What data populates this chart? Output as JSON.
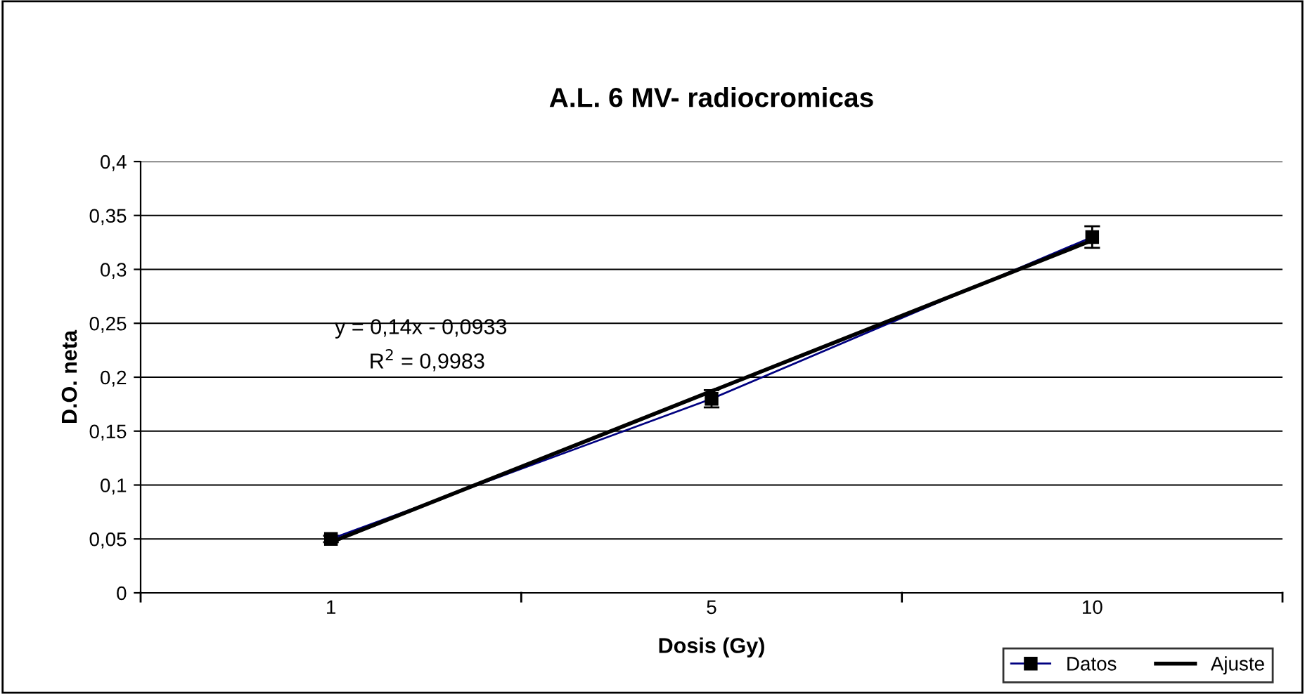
{
  "chart_data": {
    "type": "line",
    "title": "A.L. 6 MV- radiocromicas",
    "xlabel": "Dosis (Gy)",
    "ylabel": "D.O. neta",
    "categories": [
      "1",
      "5",
      "10"
    ],
    "series": [
      {
        "name": "Datos",
        "color": "#000080",
        "values": [
          0.05,
          0.18,
          0.33
        ],
        "errors": [
          0.003,
          0.008,
          0.01
        ],
        "marker": "square"
      },
      {
        "name": "Ajuste",
        "color": "#000000",
        "type": "line",
        "values": [
          0.047,
          0.187,
          0.327
        ],
        "marker": "none"
      }
    ],
    "ylim": [
      0,
      0.4
    ],
    "yticks": [
      {
        "value": 0,
        "label": "0"
      },
      {
        "value": 0.05,
        "label": "0,05"
      },
      {
        "value": 0.1,
        "label": "0,1"
      },
      {
        "value": 0.15,
        "label": "0,15"
      },
      {
        "value": 0.2,
        "label": "0,2"
      },
      {
        "value": 0.25,
        "label": "0,25"
      },
      {
        "value": 0.3,
        "label": "0,3"
      },
      {
        "value": 0.35,
        "label": "0,35"
      },
      {
        "value": 0.4,
        "label": "0,4"
      }
    ],
    "grid": "y",
    "legend": "bottom right",
    "annotations": [
      "y = 0,14x - 0,0933",
      "R$^{2}$ = 0,9983"
    ]
  }
}
